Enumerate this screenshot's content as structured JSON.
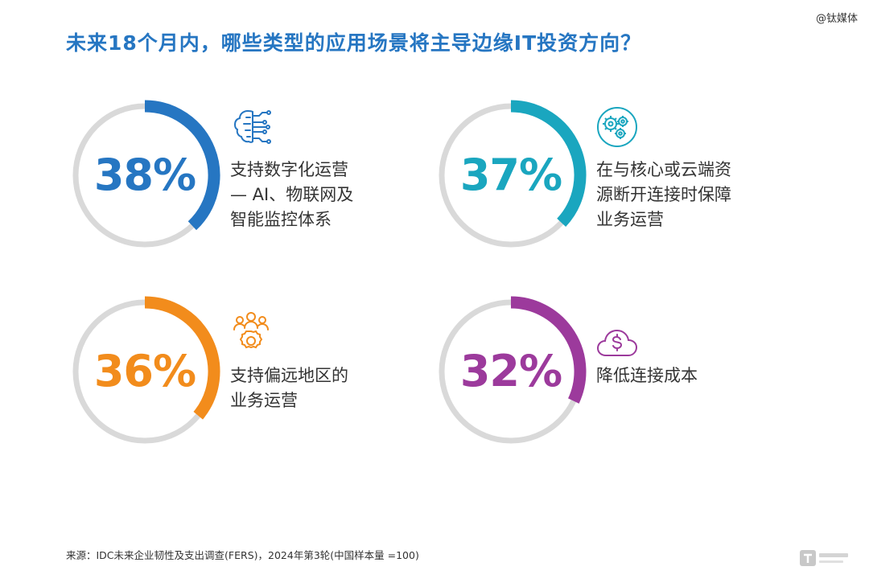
{
  "watermark": "@钛媒体",
  "title": "未来18个月内，哪些类型的应用场景将主导边缘IT投资方向？",
  "chart_data": {
    "type": "donut",
    "items": [
      {
        "value": 38,
        "label": "38%",
        "description": "支持数字化运营\n— AI、物联网及\n智能监控体系",
        "color": "#2676c2",
        "icon": "ai-chip-icon"
      },
      {
        "value": 37,
        "label": "37%",
        "description": "在与核心或云端资\n源断开连接时保障\n业务运营",
        "color": "#1aa6bf",
        "icon": "gears-icon"
      },
      {
        "value": 36,
        "label": "36%",
        "description": "支持偏远地区的\n业务运营",
        "color": "#f28c1c",
        "icon": "people-gear-icon"
      },
      {
        "value": 32,
        "label": "32%",
        "description": "降低连接成本",
        "color": "#9c3a9c",
        "icon": "cloud-dollar-icon"
      }
    ],
    "track_color": "#d9d9d9"
  },
  "source": "来源：IDC未来企业韧性及支出调查(FERS)，2024年第3轮(中国样本量 =100)",
  "colors": {
    "title": "#2676c2",
    "text": "#333333"
  }
}
